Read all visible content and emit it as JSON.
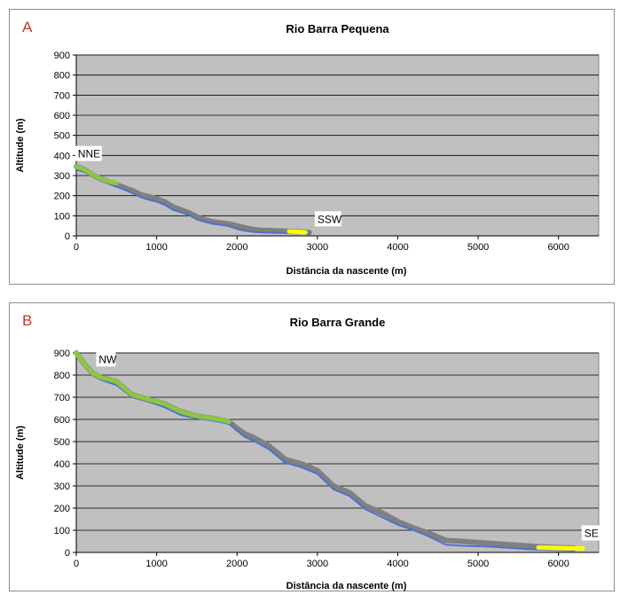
{
  "chart_data": [
    {
      "type": "line",
      "panel_label": "A",
      "title": "Rio Barra Pequena",
      "xlabel": "Distância da nascente (m)",
      "ylabel": "Altitude (m)",
      "xlim": [
        0,
        6500
      ],
      "ylim": [
        0,
        900
      ],
      "xticks": [
        "0",
        "1000",
        "2000",
        "3000",
        "4000",
        "5000",
        "6000"
      ],
      "yticks": [
        "0",
        "100",
        "200",
        "300",
        "400",
        "500",
        "600",
        "700",
        "800",
        "900"
      ],
      "grid": true,
      "plot_background": "#c0c0c0",
      "annotations": [
        {
          "text": "NNE",
          "x": 20,
          "y": 390
        },
        {
          "text": "SSW",
          "x": 3000,
          "y": 65
        }
      ],
      "series": [
        {
          "color": "#808080",
          "x": [
            0,
            100,
            200,
            300,
            400,
            500,
            600,
            700,
            800,
            900,
            1000,
            1100,
            1200,
            1300,
            1400,
            1500,
            1600,
            1700,
            1800,
            1900,
            2000,
            2100,
            2200,
            2300,
            2400,
            2500,
            2600,
            2700,
            2800,
            2900
          ],
          "values": [
            345,
            330,
            305,
            285,
            270,
            255,
            240,
            225,
            205,
            195,
            185,
            170,
            145,
            130,
            115,
            95,
            80,
            70,
            65,
            60,
            50,
            40,
            32,
            28,
            27,
            25,
            24,
            22,
            20,
            17
          ]
        },
        {
          "color": "#4a72d0",
          "x": [
            0,
            100,
            200,
            300,
            400,
            500,
            600,
            700,
            800,
            900,
            1000,
            1100,
            1200,
            1300,
            1400,
            1500,
            1600,
            1700,
            1800,
            1900,
            2000,
            2100,
            2200,
            2300,
            2400,
            2500,
            2600,
            2700,
            2800,
            2900
          ],
          "values": [
            330,
            318,
            295,
            275,
            260,
            245,
            230,
            212,
            193,
            180,
            170,
            155,
            130,
            118,
            105,
            82,
            70,
            60,
            55,
            48,
            35,
            25,
            20,
            17,
            16,
            15,
            14,
            13,
            12,
            11
          ]
        },
        {
          "color": "#8dc63f",
          "x": [
            0,
            100,
            200,
            300,
            400,
            500
          ],
          "values": [
            345,
            330,
            305,
            285,
            270,
            262
          ]
        },
        {
          "color": "#ffff00",
          "x": [
            2650,
            2750,
            2850
          ],
          "values": [
            22,
            20,
            17
          ]
        }
      ]
    },
    {
      "type": "line",
      "panel_label": "B",
      "title": "Rio Barra Grande",
      "xlabel": "Distância da nascente (m)",
      "ylabel": "Altitude (m)",
      "xlim": [
        0,
        6500
      ],
      "ylim": [
        0,
        900
      ],
      "xticks": [
        "0",
        "1000",
        "2000",
        "3000",
        "4000",
        "5000",
        "6000"
      ],
      "yticks": [
        "0",
        "100",
        "200",
        "300",
        "400",
        "500",
        "600",
        "700",
        "800",
        "900"
      ],
      "grid": true,
      "plot_background": "#c0c0c0",
      "annotations": [
        {
          "text": "NW",
          "x": 280,
          "y": 855
        },
        {
          "text": "SE",
          "x": 6320,
          "y": 70
        }
      ],
      "series": [
        {
          "color": "#808080",
          "x": [
            0,
            100,
            200,
            300,
            500,
            700,
            900,
            1100,
            1300,
            1500,
            1700,
            1900,
            2000,
            2100,
            2200,
            2400,
            2600,
            2800,
            3000,
            3200,
            3400,
            3600,
            3800,
            4000,
            4200,
            4400,
            4600,
            4800,
            5000,
            5200,
            5400,
            5600,
            5800,
            6000,
            6200
          ],
          "values": [
            900,
            850,
            810,
            790,
            770,
            710,
            690,
            670,
            635,
            615,
            605,
            590,
            560,
            535,
            520,
            480,
            420,
            400,
            370,
            300,
            270,
            210,
            180,
            140,
            110,
            85,
            55,
            50,
            45,
            40,
            35,
            30,
            25,
            22,
            20
          ]
        },
        {
          "color": "#4a72d0",
          "x": [
            0,
            100,
            200,
            300,
            500,
            700,
            900,
            1100,
            1300,
            1500,
            1700,
            1900,
            2000,
            2100,
            2200,
            2400,
            2600,
            2800,
            3000,
            3200,
            3400,
            3600,
            3800,
            4000,
            4200,
            4400,
            4600,
            4800,
            5000,
            5200,
            5400,
            5600,
            5800,
            6000,
            6200
          ],
          "values": [
            895,
            840,
            800,
            780,
            755,
            700,
            680,
            655,
            620,
            605,
            595,
            580,
            550,
            520,
            505,
            465,
            405,
            385,
            355,
            285,
            255,
            195,
            160,
            125,
            100,
            70,
            35,
            30,
            28,
            25,
            20,
            15,
            12,
            10,
            8
          ]
        },
        {
          "color": "#8dc63f",
          "x": [
            0,
            100,
            200,
            300,
            500,
            700,
            900,
            1100,
            1300,
            1500,
            1700,
            1900
          ],
          "values": [
            900,
            850,
            810,
            790,
            770,
            710,
            690,
            670,
            635,
            615,
            605,
            590
          ]
        },
        {
          "color": "#ffff00",
          "x": [
            5750,
            6000,
            6300
          ],
          "values": [
            22,
            20,
            18
          ]
        }
      ]
    }
  ]
}
